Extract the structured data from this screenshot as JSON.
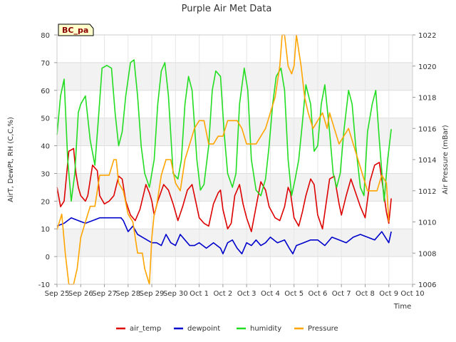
{
  "chart_data": {
    "type": "line",
    "title": "Purple Air Met Data",
    "xlabel": "Time",
    "ylabel": "AirT, DewPt, RH (C,C,%)",
    "y2label": "Air Pressure (mBar)",
    "badge": "BC_pa",
    "xlim": [
      0,
      15
    ],
    "x_ticks": [
      "Sep 25",
      "Sep 26",
      "Sep 27",
      "Sep 28",
      "Sep 29",
      "Sep 30",
      "Oct 1",
      "Oct 2",
      "Oct 3",
      "Oct 4",
      "Oct 5",
      "Oct 6",
      "Oct 7",
      "Oct 8",
      "Oct 9",
      "Oct 10"
    ],
    "ylim": [
      -10,
      80
    ],
    "y_ticks": [
      -10,
      0,
      10,
      20,
      30,
      40,
      50,
      60,
      70,
      80
    ],
    "y2lim": [
      1006,
      1022
    ],
    "y2_ticks": [
      1006,
      1008,
      1010,
      1012,
      1014,
      1016,
      1018,
      1020,
      1022
    ],
    "grid": true,
    "legend_position": "bottom",
    "series": [
      {
        "name": "air_temp",
        "color": "#dd0000",
        "axis": "left",
        "x": [
          0,
          0.15,
          0.3,
          0.5,
          0.7,
          0.8,
          0.9,
          1.0,
          1.2,
          1.3,
          1.5,
          1.7,
          1.8,
          2.0,
          2.2,
          2.4,
          2.6,
          2.75,
          2.9,
          3.1,
          3.3,
          3.5,
          3.75,
          3.9,
          4.0,
          4.1,
          4.25,
          4.5,
          4.7,
          4.9,
          5.1,
          5.3,
          5.5,
          5.7,
          5.85,
          6.0,
          6.2,
          6.4,
          6.6,
          6.8,
          6.9,
          7.0,
          7.2,
          7.35,
          7.5,
          7.7,
          7.85,
          8.0,
          8.2,
          8.4,
          8.6,
          8.8,
          8.95,
          9.2,
          9.4,
          9.6,
          9.75,
          9.85,
          10.0,
          10.2,
          10.35,
          10.5,
          10.7,
          10.85,
          11.0,
          11.2,
          11.35,
          11.5,
          11.7,
          11.9,
          12.0,
          12.2,
          12.4,
          12.6,
          12.8,
          13.0,
          13.2,
          13.4,
          13.6,
          13.8,
          13.9,
          14.0,
          14.1
        ],
        "values": [
          25,
          18,
          20,
          38,
          39,
          30,
          25,
          22,
          20,
          22,
          33,
          31,
          22,
          19,
          20,
          22,
          29,
          28,
          20,
          15,
          13,
          17,
          26,
          23,
          20,
          15,
          20,
          26,
          24,
          19,
          13,
          18,
          24,
          26,
          20,
          14,
          12,
          11,
          19,
          23,
          24,
          17,
          10,
          12,
          22,
          26,
          19,
          14,
          9,
          18,
          27,
          24,
          18,
          14,
          13,
          18,
          25,
          23,
          14,
          11,
          16,
          22,
          28,
          26,
          15,
          10,
          19,
          28,
          29,
          19,
          15,
          22,
          28,
          23,
          18,
          14,
          27,
          33,
          34,
          22,
          16,
          12,
          21
        ]
      },
      {
        "name": "dewpoint",
        "color": "#0000cc",
        "axis": "left",
        "x": [
          0,
          0.3,
          0.6,
          0.9,
          1.2,
          1.5,
          1.8,
          2.1,
          2.4,
          2.7,
          2.8,
          3.0,
          3.2,
          3.4,
          3.6,
          3.8,
          4.0,
          4.2,
          4.4,
          4.6,
          4.8,
          5.0,
          5.2,
          5.4,
          5.6,
          5.8,
          6.0,
          6.3,
          6.6,
          6.9,
          7.0,
          7.2,
          7.4,
          7.6,
          7.8,
          8.0,
          8.2,
          8.4,
          8.6,
          8.8,
          9.0,
          9.3,
          9.6,
          9.8,
          9.95,
          10.1,
          10.4,
          10.7,
          11.0,
          11.3,
          11.6,
          11.9,
          12.2,
          12.5,
          12.8,
          13.1,
          13.4,
          13.7,
          14.0,
          14.1
        ],
        "values": [
          11,
          12,
          14,
          13,
          12,
          13,
          14,
          14,
          14,
          14,
          13,
          9,
          11,
          8,
          7,
          6,
          5,
          5,
          4,
          8,
          5,
          4,
          8,
          6,
          4,
          4,
          5,
          3,
          5,
          3,
          1,
          5,
          6,
          3,
          1,
          5,
          4,
          6,
          4,
          5,
          7,
          5,
          6,
          3,
          1,
          4,
          5,
          6,
          6,
          4,
          7,
          6,
          5,
          7,
          8,
          7,
          6,
          9,
          5,
          9
        ]
      },
      {
        "name": "humidity",
        "color": "#22dd22",
        "axis": "left",
        "x": [
          0,
          0.15,
          0.3,
          0.45,
          0.6,
          0.75,
          0.9,
          1.0,
          1.2,
          1.4,
          1.6,
          1.75,
          1.9,
          2.1,
          2.3,
          2.45,
          2.6,
          2.75,
          2.9,
          3.1,
          3.25,
          3.4,
          3.55,
          3.7,
          3.9,
          4.1,
          4.25,
          4.4,
          4.55,
          4.7,
          4.9,
          5.1,
          5.25,
          5.4,
          5.55,
          5.7,
          5.9,
          6.05,
          6.2,
          6.4,
          6.55,
          6.7,
          6.9,
          7.05,
          7.2,
          7.4,
          7.55,
          7.7,
          7.9,
          8.05,
          8.2,
          8.4,
          8.6,
          8.8,
          8.95,
          9.1,
          9.25,
          9.45,
          9.6,
          9.75,
          9.9,
          10.05,
          10.2,
          10.35,
          10.5,
          10.7,
          10.85,
          11.0,
          11.15,
          11.3,
          11.5,
          11.65,
          11.8,
          11.95,
          12.1,
          12.3,
          12.45,
          12.6,
          12.8,
          12.95,
          13.1,
          13.3,
          13.45,
          13.6,
          13.8,
          13.95,
          14.1
        ],
        "values": [
          44,
          58,
          64,
          35,
          20,
          30,
          52,
          55,
          58,
          42,
          33,
          50,
          68,
          69,
          68,
          52,
          40,
          45,
          58,
          70,
          71,
          58,
          40,
          30,
          25,
          35,
          55,
          67,
          70,
          58,
          30,
          28,
          35,
          55,
          65,
          60,
          35,
          24,
          26,
          40,
          60,
          67,
          65,
          45,
          30,
          25,
          30,
          55,
          68,
          60,
          35,
          24,
          22,
          28,
          40,
          55,
          65,
          68,
          60,
          35,
          22,
          28,
          35,
          48,
          62,
          55,
          38,
          40,
          55,
          62,
          45,
          30,
          25,
          30,
          45,
          60,
          55,
          40,
          25,
          22,
          45,
          55,
          60,
          42,
          20,
          35,
          46
        ]
      },
      {
        "name": "Pressure",
        "color": "#ffa500",
        "axis": "right",
        "x": [
          0,
          0.2,
          0.35,
          0.5,
          0.7,
          0.85,
          1.0,
          1.2,
          1.4,
          1.6,
          1.8,
          2.0,
          2.2,
          2.4,
          2.5,
          2.6,
          2.8,
          3.0,
          3.2,
          3.4,
          3.6,
          3.7,
          3.8,
          3.9,
          4.0,
          4.1,
          4.2,
          4.4,
          4.6,
          4.8,
          5.0,
          5.2,
          5.4,
          5.6,
          5.8,
          6.0,
          6.2,
          6.4,
          6.6,
          6.8,
          7.0,
          7.2,
          7.4,
          7.6,
          7.8,
          8.0,
          8.2,
          8.4,
          8.6,
          8.8,
          9.0,
          9.2,
          9.4,
          9.5,
          9.6,
          9.75,
          9.9,
          10.0,
          10.1,
          10.3,
          10.45,
          10.6,
          10.8,
          11.0,
          11.2,
          11.4,
          11.5,
          11.7,
          11.9,
          12.1,
          12.3,
          12.5,
          12.7,
          12.9,
          13.1,
          13.3,
          13.5,
          13.7,
          13.9,
          14.0
        ],
        "values": [
          1009.5,
          1010.5,
          1008,
          1006,
          1006,
          1007,
          1009,
          1010,
          1011,
          1011,
          1013,
          1013,
          1013,
          1014,
          1014,
          1012.5,
          1012,
          1010.5,
          1010,
          1008,
          1008,
          1007,
          1006.5,
          1006,
          1009,
          1010.5,
          1011,
          1013,
          1014,
          1014,
          1012.5,
          1012,
          1014,
          1015,
          1016,
          1016.5,
          1016.5,
          1015,
          1015,
          1015.5,
          1015.5,
          1016.5,
          1016.5,
          1016.5,
          1016,
          1015,
          1015,
          1015,
          1015.5,
          1016,
          1017,
          1018,
          1020,
          1022,
          1022,
          1020,
          1019.5,
          1020,
          1022,
          1020,
          1018,
          1017,
          1016,
          1016.5,
          1017,
          1016,
          1017,
          1016,
          1015,
          1015.5,
          1016,
          1015,
          1014,
          1013,
          1012,
          1012,
          1012,
          1013,
          1012.5,
          1010
        ]
      }
    ]
  }
}
